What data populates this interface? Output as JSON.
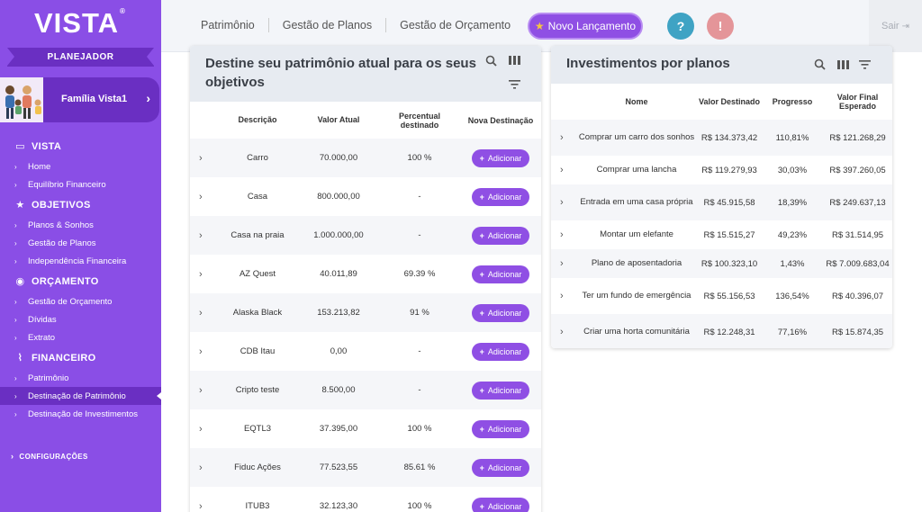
{
  "sidebar": {
    "logo": "VISTA",
    "logo_mark": "®",
    "role": "PLANEJADOR",
    "family": "Família Vista1",
    "sections": [
      {
        "title": "VISTA",
        "icon": "monitor-icon",
        "items": [
          "Home",
          "Equilíbrio Financeiro"
        ]
      },
      {
        "title": "OBJETIVOS",
        "icon": "star-icon",
        "items": [
          "Planos & Sonhos",
          "Gestão de Planos",
          "Independência Financeira"
        ]
      },
      {
        "title": "ORÇAMENTO",
        "icon": "coins-icon",
        "items": [
          "Gestão de Orçamento",
          "Dívidas",
          "Extrato"
        ]
      },
      {
        "title": "FINANCEIRO",
        "icon": "chart-line-icon",
        "items": [
          "Patrimônio",
          "Destinação de Patrimônio",
          "Destinação de Investimentos"
        ]
      }
    ],
    "active_item": "Destinação de Patrimônio",
    "settings": "CONFIGURAÇÕES"
  },
  "topbar": {
    "links": [
      "Patrimônio",
      "Gestão de Planos",
      "Gestão de Orçamento"
    ],
    "new_button": "Novo Lançamento",
    "help": "?",
    "alert": "!",
    "logout": "Sair"
  },
  "left_panel": {
    "title": "Destine seu patrimônio atual para os seus objetivos",
    "icons": [
      "search-icon",
      "columns-icon",
      "filter-icon"
    ],
    "columns": [
      "Descrição",
      "Valor Atual",
      "Percentual destinado",
      "Nova Destinação"
    ],
    "add_label": "Adicionar",
    "rows": [
      {
        "descricao": "Carro",
        "valor": "70.000,00",
        "percentual": "100 %"
      },
      {
        "descricao": "Casa",
        "valor": "800.000,00",
        "percentual": "-"
      },
      {
        "descricao": "Casa na praia",
        "valor": "1.000.000,00",
        "percentual": "-"
      },
      {
        "descricao": "AZ Quest",
        "valor": "40.011,89",
        "percentual": "69.39 %"
      },
      {
        "descricao": "Alaska Black",
        "valor": "153.213,82",
        "percentual": "91 %"
      },
      {
        "descricao": "CDB Itau",
        "valor": "0,00",
        "percentual": "-"
      },
      {
        "descricao": "Cripto teste",
        "valor": "8.500,00",
        "percentual": "-"
      },
      {
        "descricao": "EQTL3",
        "valor": "37.395,00",
        "percentual": "100 %"
      },
      {
        "descricao": "Fiduc Ações",
        "valor": "77.523,55",
        "percentual": "85.61 %"
      },
      {
        "descricao": "ITUB3",
        "valor": "32.123,30",
        "percentual": "100 %"
      }
    ]
  },
  "right_panel": {
    "title": "Investimentos por planos",
    "icons": [
      "search-icon",
      "columns-icon",
      "filter-icon"
    ],
    "columns": [
      "Nome",
      "Valor Destinado",
      "Progresso",
      "Valor Final Esperado"
    ],
    "rows": [
      {
        "nome": "Comprar um carro dos sonhos",
        "destinado": "R$ 134.373,42",
        "progresso": "110,81%",
        "esperado": "R$ 121.268,29"
      },
      {
        "nome": "Comprar uma lancha",
        "destinado": "R$ 119.279,93",
        "progresso": "30,03%",
        "esperado": "R$ 397.260,05"
      },
      {
        "nome": "Entrada em uma casa própria",
        "destinado": "R$ 45.915,58",
        "progresso": "18,39%",
        "esperado": "R$ 249.637,13"
      },
      {
        "nome": "Montar um elefante",
        "destinado": "R$ 15.515,27",
        "progresso": "49,23%",
        "esperado": "R$ 31.514,95"
      },
      {
        "nome": "Plano de aposentadoria",
        "destinado": "R$ 100.323,10",
        "progresso": "1,43%",
        "esperado": "R$ 7.009.683,04"
      },
      {
        "nome": "Ter um fundo de emergência",
        "destinado": "R$ 55.156,53",
        "progresso": "136,54%",
        "esperado": "R$ 40.396,07"
      },
      {
        "nome": "Criar uma horta comunitária",
        "destinado": "R$ 12.248,31",
        "progresso": "77,16%",
        "esperado": "R$ 15.874,35"
      }
    ]
  },
  "colors": {
    "primary": "#8a4ee6",
    "primary_dark": "#6a2fc2",
    "button": "#8f4fe4",
    "help": "#3fa3c4",
    "alert": "#e49599"
  }
}
